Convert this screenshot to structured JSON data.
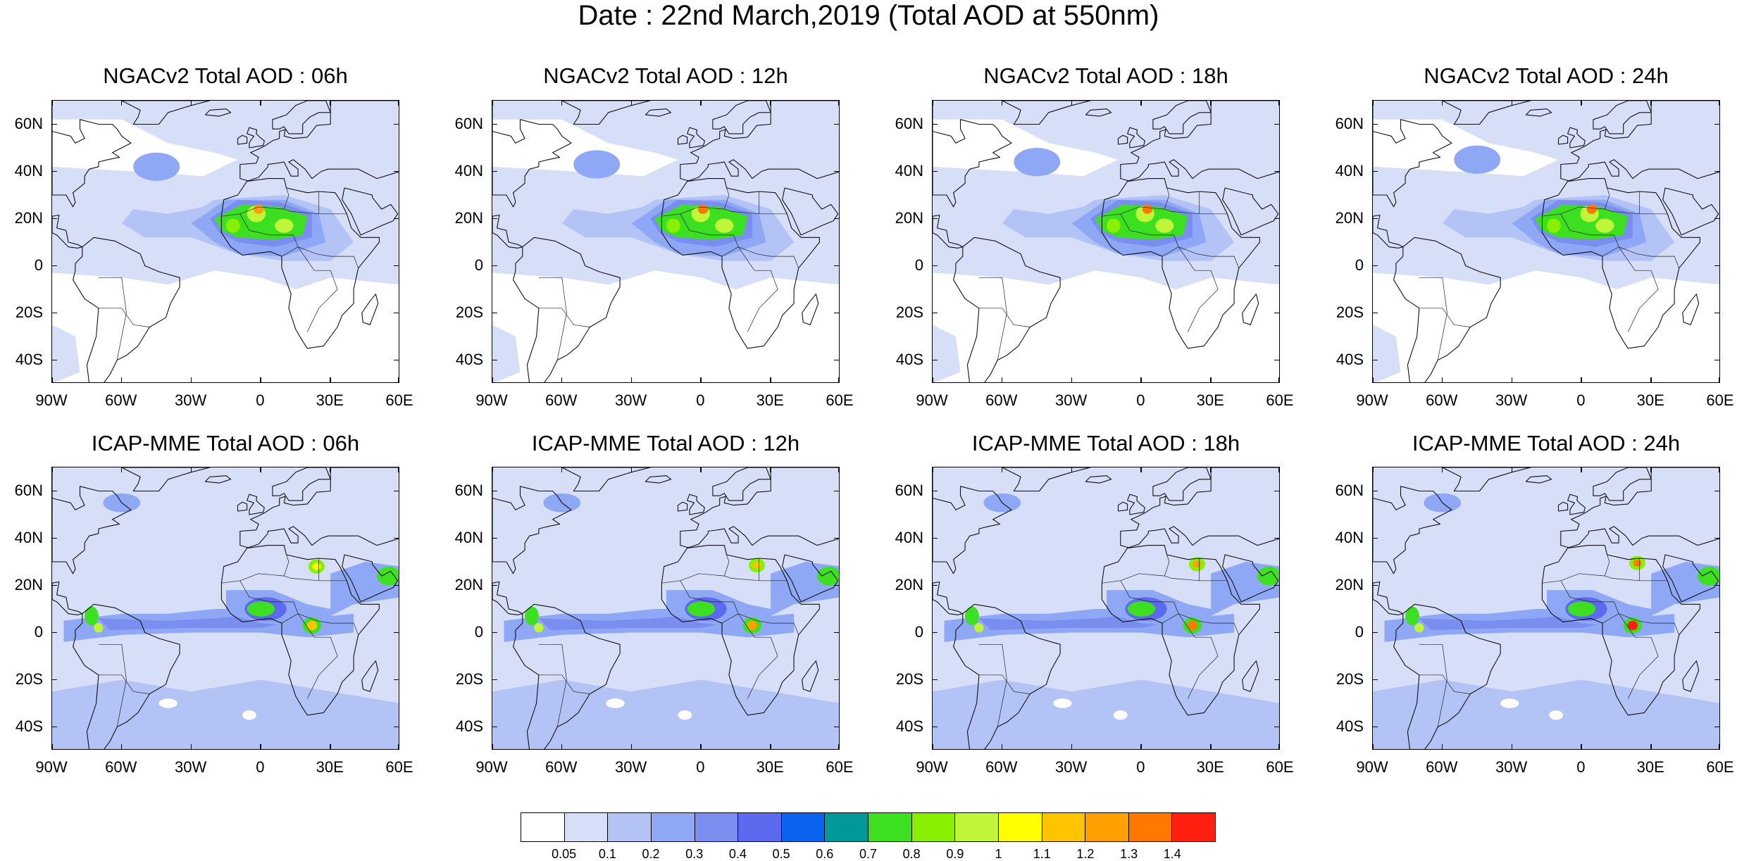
{
  "title": "Date : 22nd March,2019 (Total AOD at 550nm)",
  "panels": [
    {
      "model": "NGACv2",
      "title": "NGACv2 Total AOD : 06h"
    },
    {
      "model": "NGACv2",
      "title": "NGACv2 Total AOD : 12h"
    },
    {
      "model": "NGACv2",
      "title": "NGACv2 Total AOD : 18h"
    },
    {
      "model": "NGACv2",
      "title": "NGACv2 Total AOD : 24h"
    },
    {
      "model": "ICAP-MME",
      "title": "ICAP-MME Total AOD : 06h"
    },
    {
      "model": "ICAP-MME",
      "title": "ICAP-MME Total AOD : 12h"
    },
    {
      "model": "ICAP-MME",
      "title": "ICAP-MME Total AOD : 18h"
    },
    {
      "model": "ICAP-MME",
      "title": "ICAP-MME Total AOD : 24h"
    }
  ],
  "lat_labels": [
    "60N",
    "40N",
    "20N",
    "0",
    "20S",
    "40S"
  ],
  "lat_values": [
    60,
    40,
    20,
    0,
    -20,
    -40
  ],
  "lon_labels": [
    "90W",
    "60W",
    "30W",
    "0",
    "30E",
    "60E"
  ],
  "lon_values": [
    -90,
    -60,
    -30,
    0,
    30,
    60
  ],
  "extent": {
    "lon": [
      -90,
      60
    ],
    "lat": [
      -50,
      70
    ]
  },
  "colorbar": {
    "labels": [
      "0.05",
      "0.1",
      "0.2",
      "0.3",
      "0.4",
      "0.5",
      "0.6",
      "0.7",
      "0.8",
      "0.9",
      "1",
      "1.1",
      "1.2",
      "1.3",
      "1.4"
    ],
    "colors": [
      "#ffffff",
      "#d6def8",
      "#b4c3f5",
      "#8fa8f5",
      "#7a8ef0",
      "#5c6af0",
      "#0a64f0",
      "#00999a",
      "#3de020",
      "#88f000",
      "#c0f53a",
      "#ffff00",
      "#ffc400",
      "#ffa000",
      "#ff7800",
      "#ff2010"
    ]
  }
}
